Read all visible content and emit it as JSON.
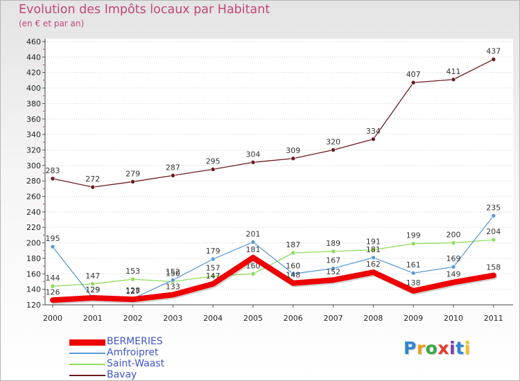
{
  "header": {
    "title": "Evolution des Impôts locaux par Habitant",
    "subtitle": "(en € et par an)"
  },
  "logo": {
    "text": "Proxiti"
  },
  "chart_data": {
    "type": "line",
    "title": "Evolution des Impôts locaux par Habitant",
    "subtitle": "(en € et par an)",
    "xlabel": "",
    "ylabel": "",
    "x": [
      "2000",
      "2001",
      "2002",
      "2003",
      "2004",
      "2005",
      "2006",
      "2007",
      "2008",
      "2009",
      "2010",
      "2011"
    ],
    "ylim": [
      120,
      460
    ],
    "yticks": [
      120,
      140,
      160,
      180,
      200,
      220,
      240,
      260,
      280,
      300,
      320,
      340,
      360,
      380,
      400,
      420,
      440,
      460
    ],
    "grid": "horizontal dotted",
    "legend": "bottom-left",
    "series": [
      {
        "name": "Bavay",
        "color": "#6b1a1e",
        "values": [
          283,
          272,
          279,
          287,
          295,
          304,
          309,
          320,
          334,
          407,
          411,
          437
        ]
      },
      {
        "name": "Saint-Waast",
        "color": "#8fdc5a",
        "values": [
          144,
          147,
          153,
          150,
          157,
          160,
          187,
          189,
          191,
          199,
          200,
          204
        ]
      },
      {
        "name": "Amfroipret",
        "color": "#5b9bd5",
        "values": [
          195,
          129,
          128,
          152,
          179,
          201,
          160,
          167,
          181,
          161,
          169,
          235
        ]
      },
      {
        "name": "BERMERIES",
        "color": "#ee0000",
        "values": [
          126,
          129,
          127,
          133,
          147,
          181,
          148,
          152,
          162,
          138,
          149,
          158
        ]
      }
    ]
  }
}
